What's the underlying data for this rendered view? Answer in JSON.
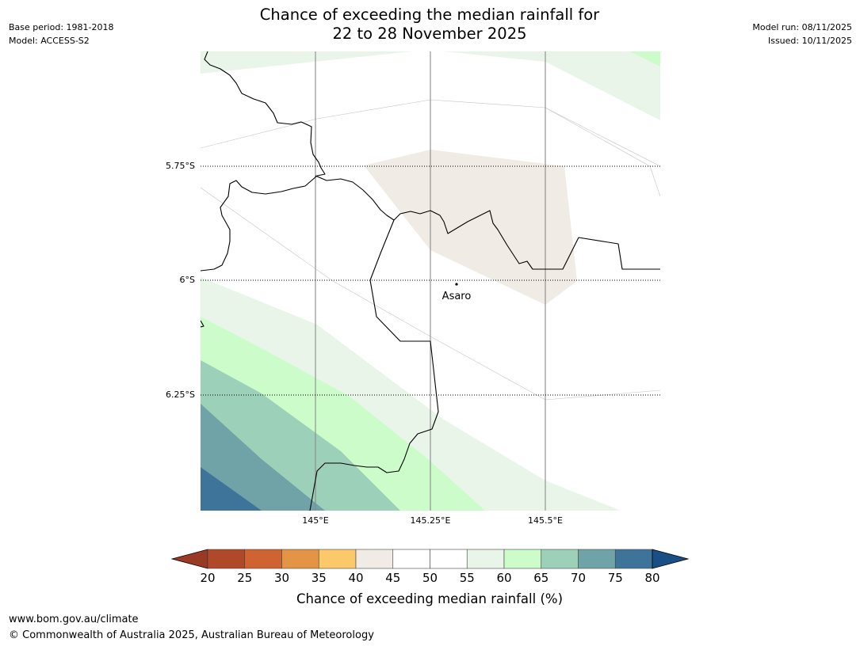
{
  "header": {
    "base_period": "Base period: 1981-2018",
    "model": "Model: ACCESS-S2",
    "model_run": "Model run: 08/11/2025",
    "issued": "Issued: 10/11/2025",
    "title_line1": "Chance of exceeding the median rainfall for",
    "title_line2": "22 to 28 November 2025"
  },
  "map": {
    "lat_labels": [
      "5.75°S",
      "6°S",
      "6.25°S"
    ],
    "lon_labels": [
      "145°E",
      "145.25°E",
      "145.5°E"
    ],
    "place": "Asaro"
  },
  "legend": {
    "ticks": [
      "20",
      "25",
      "30",
      "35",
      "40",
      "45",
      "50",
      "55",
      "60",
      "65",
      "70",
      "75",
      "80"
    ],
    "colors": [
      "#b0482a",
      "#cf6432",
      "#e39444",
      "#fcc96a",
      "#f0ebe5",
      "#ffffff",
      "#ffffff",
      "#e8f5e8",
      "#cbfcca",
      "#9dd0b8",
      "#70a3a8",
      "#3e7499"
    ],
    "low_color": "#9a3a25",
    "high_color": "#1a4f86",
    "label": "Chance of exceeding median rainfall (%)"
  },
  "footer": {
    "url": "www.bom.gov.au/climate",
    "copyright": "© Commonwealth of Australia 2025, Australian Bureau of Meteorology"
  }
}
